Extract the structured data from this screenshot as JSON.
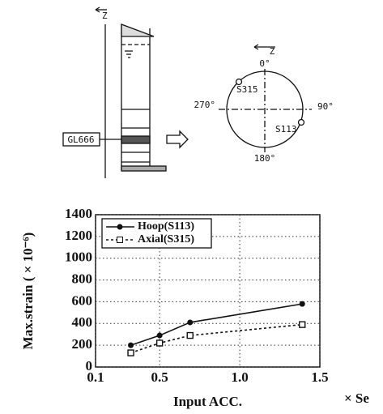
{
  "diagram": {
    "labels": {
      "z_left": "Z",
      "gl": "GL666",
      "z_right": "Z",
      "deg0": "0°",
      "deg90": "90°",
      "deg180": "180°",
      "deg270": "270°",
      "s315": "S315",
      "s113": "S113"
    }
  },
  "chart_data": {
    "type": "line",
    "y_label": "Max.strain ( × 10⁻⁶)",
    "x_label": "Input ACC.",
    "x_unit": "× Se",
    "xlim": [
      0.1,
      1.5
    ],
    "xticks": [
      0.1,
      0.5,
      {
        "value": 1,
        "label": "1.0"
      },
      1.5
    ],
    "ylim": [
      0,
      1400
    ],
    "yticks": [
      0,
      200,
      400,
      600,
      800,
      1000,
      1200,
      1400
    ],
    "grid": true,
    "legend": "upper left",
    "series": [
      {
        "name": "Hoop(S113)",
        "color": "#111111",
        "x": [
          0.32,
          0.5,
          0.69,
          1.39
        ],
        "values": [
          200,
          290,
          410,
          580
        ]
      },
      {
        "name": "Axial(S315)",
        "color": "#111111",
        "x": [
          0.32,
          0.5,
          0.69,
          1.39
        ],
        "values": [
          130,
          220,
          290,
          390
        ]
      }
    ]
  }
}
